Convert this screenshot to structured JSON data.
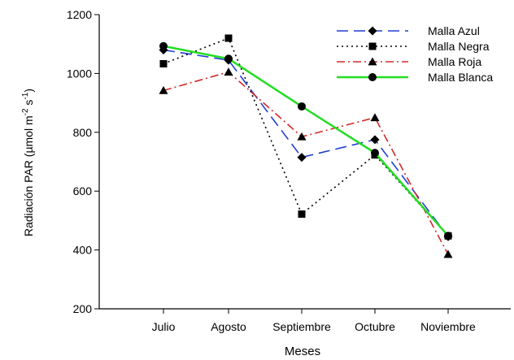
{
  "chart_data": {
    "type": "line",
    "categories": [
      "Julio",
      "Agosto",
      "Septiembre",
      "Octubre",
      "Noviembre"
    ],
    "xlabel": "Meses",
    "ylabel": {
      "prefix": "Radiación PAR (µmol m",
      "sup1": "-2",
      "middle": " s",
      "sup2": "-1",
      "suffix": ")"
    },
    "ylim": [
      200,
      1200
    ],
    "yticks": [
      "200",
      "400",
      "600",
      "800",
      "1000",
      "1200"
    ],
    "grid": false,
    "legend_position": "top-right",
    "series": [
      {
        "name": "Malla Azul",
        "values": [
          1080,
          1045,
          715,
          775,
          445
        ],
        "color": "#1f3fd4",
        "dash": "dashed",
        "marker": "diamond"
      },
      {
        "name": "Malla Negra",
        "values": [
          1033,
          1120,
          522,
          723,
          448
        ],
        "color": "#000000",
        "dash": "dotted",
        "marker": "square"
      },
      {
        "name": "Malla Roja",
        "values": [
          942,
          1005,
          785,
          850,
          385
        ],
        "color": "#d42a2a",
        "dash": "dash-dot",
        "marker": "triangle"
      },
      {
        "name": "Malla Blanca",
        "values": [
          1093,
          1050,
          888,
          730,
          448
        ],
        "color": "#22dd22",
        "dash": "solid",
        "marker": "circle"
      }
    ]
  }
}
